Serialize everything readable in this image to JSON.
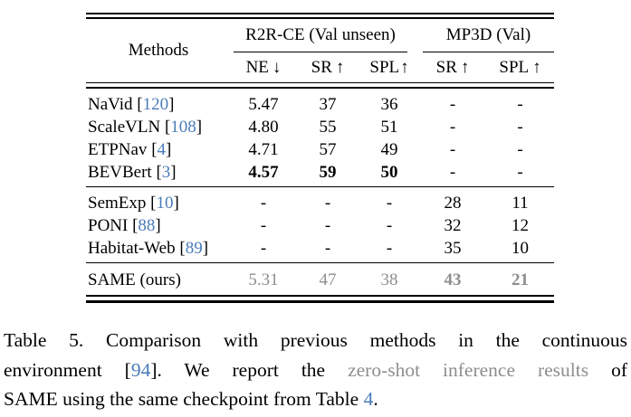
{
  "table": {
    "header": {
      "methods": "Methods",
      "groups": [
        {
          "label": "R2R-CE (Val unseen)"
        },
        {
          "label": "MP3D (Val)"
        }
      ],
      "subcols": [
        {
          "label": "NE",
          "arrow": "↓"
        },
        {
          "label": "SR",
          "arrow": "↑"
        },
        {
          "label": "SPL",
          "arrow": "↑"
        },
        {
          "label": "SR",
          "arrow": "↑"
        },
        {
          "label": "SPL",
          "arrow": "↑"
        }
      ]
    },
    "cite_open": "[",
    "cite_close": "]",
    "rows": [
      {
        "method": "NaVid",
        "cite": "120",
        "ne": "5.47",
        "sr": "37",
        "spl": "36",
        "mp3d_sr": "-",
        "mp3d_spl": "-"
      },
      {
        "method": "ScaleVLN",
        "cite": "108",
        "ne": "4.80",
        "sr": "55",
        "spl": "51",
        "mp3d_sr": "-",
        "mp3d_spl": "-"
      },
      {
        "method": "ETPNav",
        "cite": "4",
        "ne": "4.71",
        "sr": "57",
        "spl": "49",
        "mp3d_sr": "-",
        "mp3d_spl": "-"
      },
      {
        "method": "BEVBert",
        "cite": "3",
        "ne": "4.57",
        "sr": "59",
        "spl": "50",
        "mp3d_sr": "-",
        "mp3d_spl": "-"
      },
      {
        "method": "SemExp",
        "cite": "10",
        "ne": "-",
        "sr": "-",
        "spl": "-",
        "mp3d_sr": "28",
        "mp3d_spl": "11"
      },
      {
        "method": "PONI",
        "cite": "88",
        "ne": "-",
        "sr": "-",
        "spl": "-",
        "mp3d_sr": "32",
        "mp3d_spl": "12"
      },
      {
        "method": "Habitat-Web",
        "cite": "89",
        "ne": "-",
        "sr": "-",
        "spl": "-",
        "mp3d_sr": "35",
        "mp3d_spl": "10"
      },
      {
        "method": "SAME (ours)",
        "cite": "",
        "ne": "5.31",
        "sr": "47",
        "spl": "38",
        "mp3d_sr": "43",
        "mp3d_spl": "21"
      }
    ]
  },
  "caption": {
    "line1": "Table 5.  Comparison with previous methods in the continuous",
    "line2": {
      "pre": "environment [",
      "cite": "94",
      "mid": "].  We report the ",
      "gray": "zero-shot inference results",
      "post": " of"
    },
    "line3": {
      "pre": "SAME using the same checkpoint from Table ",
      "cite": "4",
      "post": "."
    }
  },
  "colors": {
    "citation_blue": "#4a7cba",
    "muted_gray": "#8e8e8e",
    "text_black": "#000000",
    "background": "#ffffff"
  }
}
